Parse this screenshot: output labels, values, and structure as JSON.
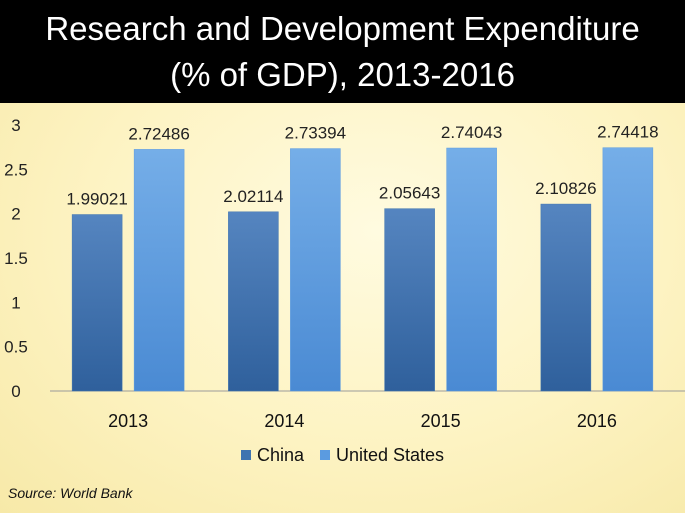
{
  "title": {
    "line1": "Research and Development Expenditure",
    "line2": "(% of GDP), 2013-2016"
  },
  "source": "Source: World Bank",
  "colors": {
    "china": "#3f74b0",
    "united_states": "#5b9be0",
    "title_bg": "#000000"
  },
  "chart_data": {
    "type": "bar",
    "title": "Research and Development Expenditure (% of GDP), 2013-2016",
    "categories": [
      "2013",
      "2014",
      "2015",
      "2016"
    ],
    "series": [
      {
        "name": "China",
        "values": [
          1.99021,
          2.02114,
          2.05643,
          2.10826
        ],
        "labels": [
          "1.99021",
          "2.02114",
          "2.05643",
          "2.10826"
        ]
      },
      {
        "name": "United States",
        "values": [
          2.72486,
          2.73394,
          2.74043,
          2.74418
        ],
        "labels": [
          "2.72486",
          "2.73394",
          "2.74043",
          "2.74418"
        ]
      }
    ],
    "yticks": [
      "0",
      "0.5",
      "1",
      "1.5",
      "2",
      "2.5",
      "3"
    ],
    "ylim": [
      0,
      3
    ],
    "xlabel": "",
    "ylabel": "",
    "grid": false,
    "legend_position": "bottom"
  }
}
